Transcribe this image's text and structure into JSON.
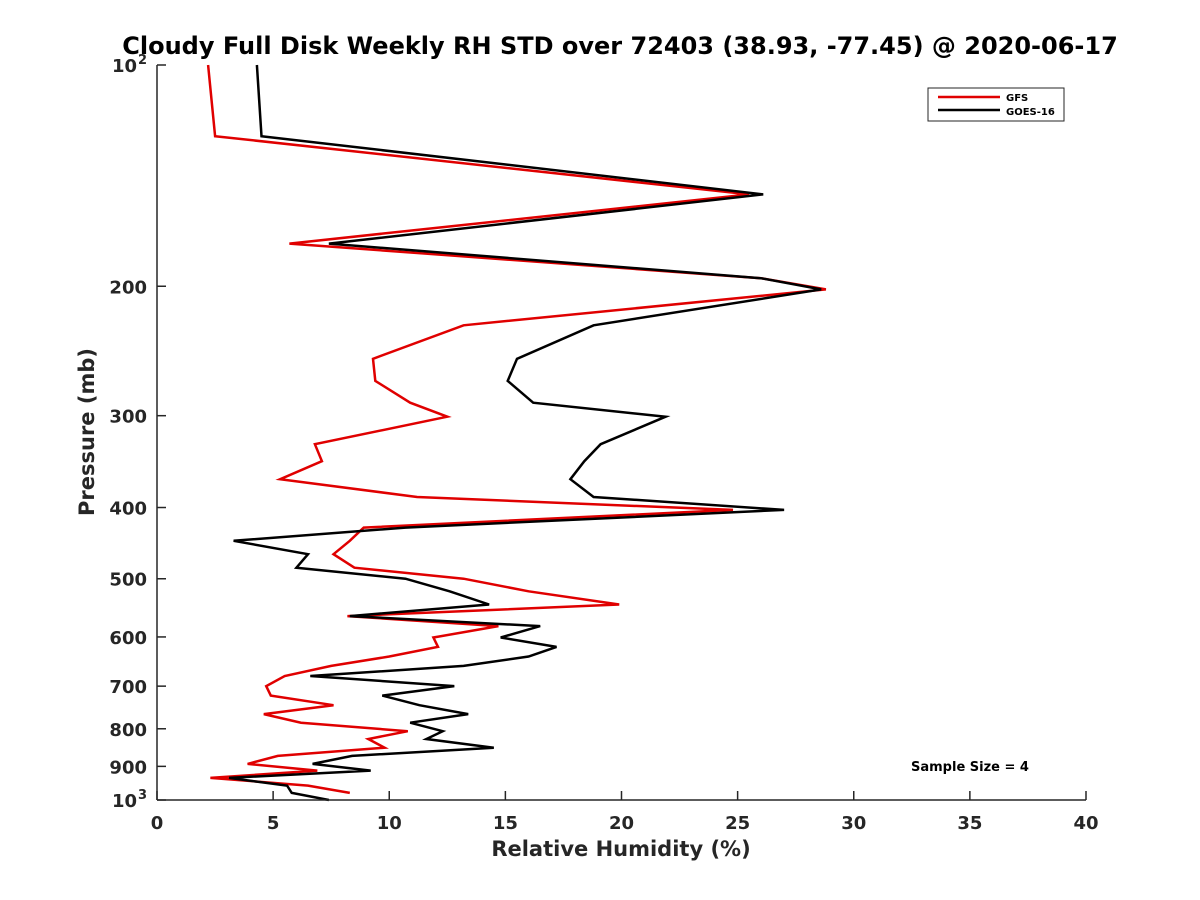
{
  "chart_data": {
    "type": "line",
    "title": "Cloudy Full Disk Weekly RH STD over 72403 (38.93, -77.45) @ 2020-06-17",
    "xlabel": "Relative Humidity (%)",
    "ylabel": "Pressure (mb)",
    "xlim": [
      0,
      40
    ],
    "ylim": [
      100,
      1000
    ],
    "y_scale": "log",
    "y_reversed": true,
    "x_ticks": [
      0,
      5,
      10,
      15,
      20,
      25,
      30,
      35,
      40
    ],
    "x_tick_labels": [
      "0",
      "5",
      "10",
      "15",
      "20",
      "25",
      "30",
      "35",
      "40"
    ],
    "y_ticks": [
      100,
      200,
      300,
      400,
      500,
      600,
      700,
      800,
      900,
      1000
    ],
    "y_tick_labels": [
      {
        "base": "10",
        "sup": "2"
      },
      {
        "base": "200",
        "sup": ""
      },
      {
        "base": "300",
        "sup": ""
      },
      {
        "base": "400",
        "sup": ""
      },
      {
        "base": "500",
        "sup": ""
      },
      {
        "base": "600",
        "sup": ""
      },
      {
        "base": "700",
        "sup": ""
      },
      {
        "base": "800",
        "sup": ""
      },
      {
        "base": "900",
        "sup": ""
      },
      {
        "base": "10",
        "sup": "3"
      }
    ],
    "grid": false,
    "legend_position": "top-right",
    "annotation": "Sample Size = 4",
    "series": [
      {
        "name": "GFS",
        "color": "#e00000",
        "points": [
          [
            2.2,
            100
          ],
          [
            2.5,
            125
          ],
          [
            25.5,
            150
          ],
          [
            5.7,
            175
          ],
          [
            26,
            195
          ],
          [
            28.8,
            202
          ],
          [
            13.2,
            226
          ],
          [
            9.3,
            251
          ],
          [
            9.4,
            269
          ],
          [
            10.9,
            288
          ],
          [
            12.5,
            301
          ],
          [
            6.8,
            328
          ],
          [
            7.1,
            346
          ],
          [
            5.3,
            366
          ],
          [
            11.2,
            387
          ],
          [
            24.8,
            403
          ],
          [
            8.9,
            426
          ],
          [
            8.3,
            444
          ],
          [
            7.6,
            463
          ],
          [
            8.5,
            483
          ],
          [
            13.2,
            500
          ],
          [
            16,
            520
          ],
          [
            19.9,
            542
          ],
          [
            8.2,
            562
          ],
          [
            14.7,
            580
          ],
          [
            11.9,
            601
          ],
          [
            12.1,
            619
          ],
          [
            10,
            638
          ],
          [
            7.5,
            657
          ],
          [
            5.5,
            678
          ],
          [
            4.7,
            700
          ],
          [
            4.9,
            721
          ],
          [
            7.6,
            743
          ],
          [
            4.6,
            764
          ],
          [
            6.2,
            785
          ],
          [
            10.8,
            806
          ],
          [
            9.1,
            826
          ],
          [
            9.8,
            849
          ],
          [
            5.2,
            871
          ],
          [
            3.9,
            893
          ],
          [
            6.9,
            912
          ],
          [
            2.3,
            933
          ],
          [
            6.5,
            956
          ],
          [
            8.3,
            978
          ]
        ]
      },
      {
        "name": "GOES-16",
        "color": "#000000",
        "points": [
          [
            4.3,
            100
          ],
          [
            4.5,
            125
          ],
          [
            26.1,
            150
          ],
          [
            7.4,
            175
          ],
          [
            26,
            195
          ],
          [
            28.6,
            202
          ],
          [
            18.8,
            226
          ],
          [
            15.5,
            251
          ],
          [
            15.1,
            269
          ],
          [
            16.2,
            288
          ],
          [
            21.9,
            301
          ],
          [
            19.1,
            328
          ],
          [
            18.4,
            346
          ],
          [
            17.8,
            366
          ],
          [
            18.8,
            387
          ],
          [
            27,
            403
          ],
          [
            10.7,
            426
          ],
          [
            3.3,
            444
          ],
          [
            6.5,
            463
          ],
          [
            6,
            483
          ],
          [
            10.7,
            500
          ],
          [
            12.6,
            520
          ],
          [
            14.3,
            542
          ],
          [
            8.3,
            562
          ],
          [
            16.5,
            580
          ],
          [
            14.8,
            601
          ],
          [
            17.2,
            619
          ],
          [
            16,
            638
          ],
          [
            13.2,
            657
          ],
          [
            6.6,
            678
          ],
          [
            12.8,
            700
          ],
          [
            9.7,
            721
          ],
          [
            11.3,
            743
          ],
          [
            13.4,
            764
          ],
          [
            10.9,
            785
          ],
          [
            12.3,
            806
          ],
          [
            11.6,
            826
          ],
          [
            14.5,
            849
          ],
          [
            8.4,
            871
          ],
          [
            6.7,
            893
          ],
          [
            9.2,
            912
          ],
          [
            3.1,
            933
          ],
          [
            5.6,
            956
          ],
          [
            5.8,
            978
          ],
          [
            7.4,
            1000
          ]
        ]
      }
    ]
  }
}
